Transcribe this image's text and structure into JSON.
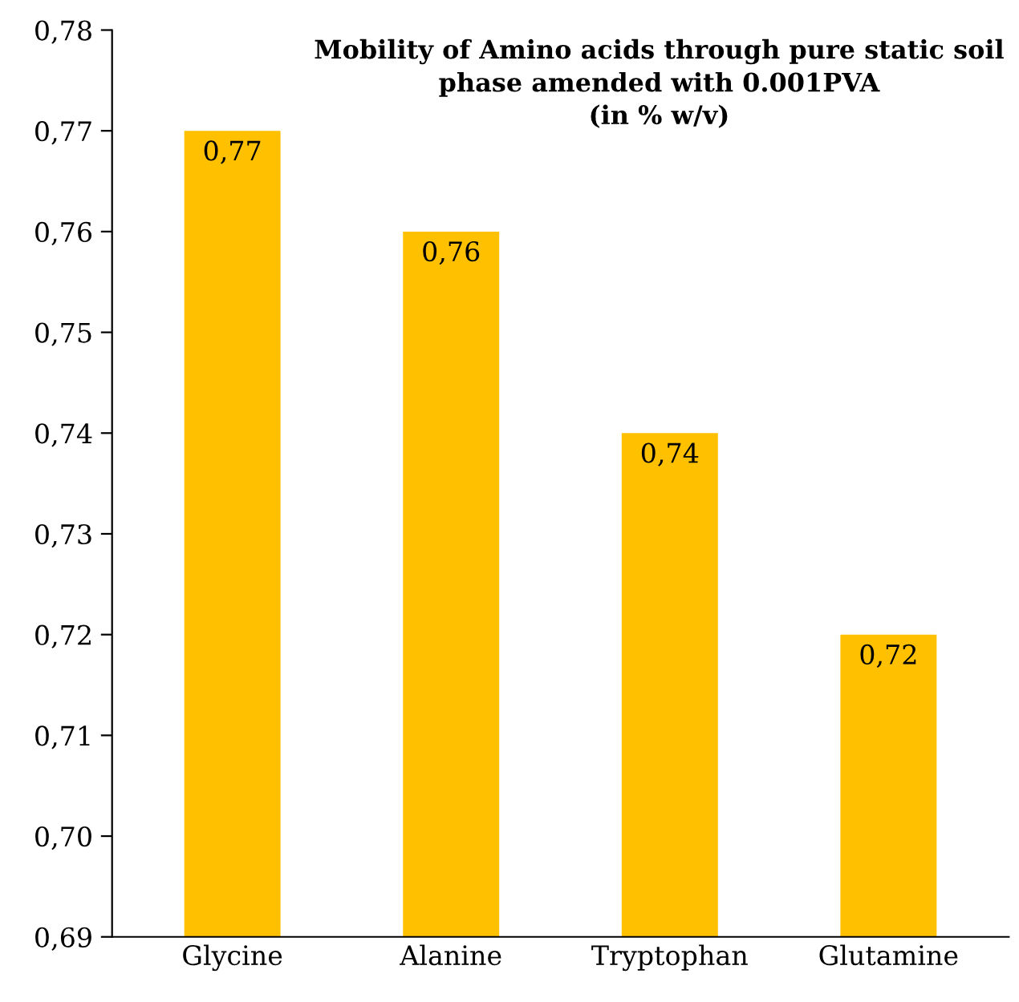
{
  "chart_data": {
    "type": "bar",
    "title": "Mobility of Amino acids through pure static soil\nphase amended with 0.001PVA\n(in % w/v)",
    "categories": [
      "Glycine",
      "Alanine",
      "Tryptophan",
      "Glutamine"
    ],
    "values": [
      0.77,
      0.76,
      0.74,
      0.72
    ],
    "value_labels": [
      "0,77",
      "0,76",
      "0,74",
      "0,72"
    ],
    "color": "#ffc000",
    "ylim": [
      0.69,
      0.78
    ],
    "yticks": [
      {
        "value": 0.69,
        "label": "0,69"
      },
      {
        "value": 0.7,
        "label": "0,70"
      },
      {
        "value": 0.71,
        "label": "0,71"
      },
      {
        "value": 0.72,
        "label": "0,72"
      },
      {
        "value": 0.73,
        "label": "0,73"
      },
      {
        "value": 0.74,
        "label": "0,74"
      },
      {
        "value": 0.75,
        "label": "0,75"
      },
      {
        "value": 0.76,
        "label": "0,76"
      },
      {
        "value": 0.77,
        "label": "0,77"
      },
      {
        "value": 0.78,
        "label": "0,78"
      }
    ],
    "grid": false,
    "legend": false
  }
}
